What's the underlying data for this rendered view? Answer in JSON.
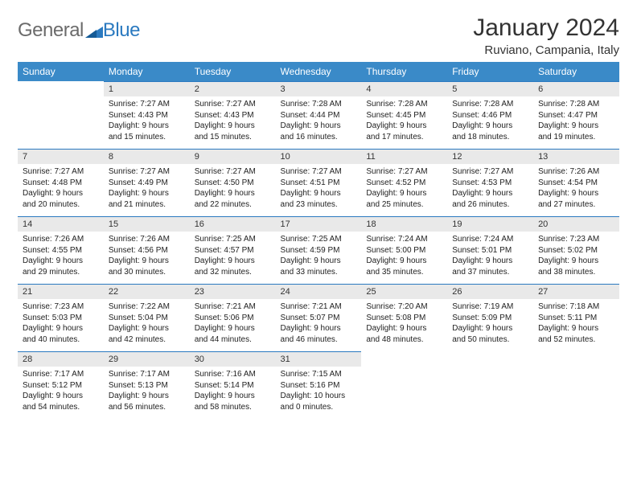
{
  "logo": {
    "part1": "General",
    "part2": "Blue"
  },
  "title": "January 2024",
  "location": "Ruviano, Campania, Italy",
  "headers": [
    "Sunday",
    "Monday",
    "Tuesday",
    "Wednesday",
    "Thursday",
    "Friday",
    "Saturday"
  ],
  "colors": {
    "header_bg": "#3a8ac0",
    "header_fg": "#ffffff",
    "border": "#2b7ac0",
    "daybar": "#e9e9e9",
    "text": "#222222",
    "logo_gray": "#6b6b6b",
    "logo_blue": "#2b7ac0"
  },
  "weeks": [
    [
      {
        "empty": true
      },
      {
        "num": "1",
        "sunrise": "Sunrise: 7:27 AM",
        "sunset": "Sunset: 4:43 PM",
        "day1": "Daylight: 9 hours",
        "day2": "and 15 minutes."
      },
      {
        "num": "2",
        "sunrise": "Sunrise: 7:27 AM",
        "sunset": "Sunset: 4:43 PM",
        "day1": "Daylight: 9 hours",
        "day2": "and 15 minutes."
      },
      {
        "num": "3",
        "sunrise": "Sunrise: 7:28 AM",
        "sunset": "Sunset: 4:44 PM",
        "day1": "Daylight: 9 hours",
        "day2": "and 16 minutes."
      },
      {
        "num": "4",
        "sunrise": "Sunrise: 7:28 AM",
        "sunset": "Sunset: 4:45 PM",
        "day1": "Daylight: 9 hours",
        "day2": "and 17 minutes."
      },
      {
        "num": "5",
        "sunrise": "Sunrise: 7:28 AM",
        "sunset": "Sunset: 4:46 PM",
        "day1": "Daylight: 9 hours",
        "day2": "and 18 minutes."
      },
      {
        "num": "6",
        "sunrise": "Sunrise: 7:28 AM",
        "sunset": "Sunset: 4:47 PM",
        "day1": "Daylight: 9 hours",
        "day2": "and 19 minutes."
      }
    ],
    [
      {
        "num": "7",
        "sunrise": "Sunrise: 7:27 AM",
        "sunset": "Sunset: 4:48 PM",
        "day1": "Daylight: 9 hours",
        "day2": "and 20 minutes."
      },
      {
        "num": "8",
        "sunrise": "Sunrise: 7:27 AM",
        "sunset": "Sunset: 4:49 PM",
        "day1": "Daylight: 9 hours",
        "day2": "and 21 minutes."
      },
      {
        "num": "9",
        "sunrise": "Sunrise: 7:27 AM",
        "sunset": "Sunset: 4:50 PM",
        "day1": "Daylight: 9 hours",
        "day2": "and 22 minutes."
      },
      {
        "num": "10",
        "sunrise": "Sunrise: 7:27 AM",
        "sunset": "Sunset: 4:51 PM",
        "day1": "Daylight: 9 hours",
        "day2": "and 23 minutes."
      },
      {
        "num": "11",
        "sunrise": "Sunrise: 7:27 AM",
        "sunset": "Sunset: 4:52 PM",
        "day1": "Daylight: 9 hours",
        "day2": "and 25 minutes."
      },
      {
        "num": "12",
        "sunrise": "Sunrise: 7:27 AM",
        "sunset": "Sunset: 4:53 PM",
        "day1": "Daylight: 9 hours",
        "day2": "and 26 minutes."
      },
      {
        "num": "13",
        "sunrise": "Sunrise: 7:26 AM",
        "sunset": "Sunset: 4:54 PM",
        "day1": "Daylight: 9 hours",
        "day2": "and 27 minutes."
      }
    ],
    [
      {
        "num": "14",
        "sunrise": "Sunrise: 7:26 AM",
        "sunset": "Sunset: 4:55 PM",
        "day1": "Daylight: 9 hours",
        "day2": "and 29 minutes."
      },
      {
        "num": "15",
        "sunrise": "Sunrise: 7:26 AM",
        "sunset": "Sunset: 4:56 PM",
        "day1": "Daylight: 9 hours",
        "day2": "and 30 minutes."
      },
      {
        "num": "16",
        "sunrise": "Sunrise: 7:25 AM",
        "sunset": "Sunset: 4:57 PM",
        "day1": "Daylight: 9 hours",
        "day2": "and 32 minutes."
      },
      {
        "num": "17",
        "sunrise": "Sunrise: 7:25 AM",
        "sunset": "Sunset: 4:59 PM",
        "day1": "Daylight: 9 hours",
        "day2": "and 33 minutes."
      },
      {
        "num": "18",
        "sunrise": "Sunrise: 7:24 AM",
        "sunset": "Sunset: 5:00 PM",
        "day1": "Daylight: 9 hours",
        "day2": "and 35 minutes."
      },
      {
        "num": "19",
        "sunrise": "Sunrise: 7:24 AM",
        "sunset": "Sunset: 5:01 PM",
        "day1": "Daylight: 9 hours",
        "day2": "and 37 minutes."
      },
      {
        "num": "20",
        "sunrise": "Sunrise: 7:23 AM",
        "sunset": "Sunset: 5:02 PM",
        "day1": "Daylight: 9 hours",
        "day2": "and 38 minutes."
      }
    ],
    [
      {
        "num": "21",
        "sunrise": "Sunrise: 7:23 AM",
        "sunset": "Sunset: 5:03 PM",
        "day1": "Daylight: 9 hours",
        "day2": "and 40 minutes."
      },
      {
        "num": "22",
        "sunrise": "Sunrise: 7:22 AM",
        "sunset": "Sunset: 5:04 PM",
        "day1": "Daylight: 9 hours",
        "day2": "and 42 minutes."
      },
      {
        "num": "23",
        "sunrise": "Sunrise: 7:21 AM",
        "sunset": "Sunset: 5:06 PM",
        "day1": "Daylight: 9 hours",
        "day2": "and 44 minutes."
      },
      {
        "num": "24",
        "sunrise": "Sunrise: 7:21 AM",
        "sunset": "Sunset: 5:07 PM",
        "day1": "Daylight: 9 hours",
        "day2": "and 46 minutes."
      },
      {
        "num": "25",
        "sunrise": "Sunrise: 7:20 AM",
        "sunset": "Sunset: 5:08 PM",
        "day1": "Daylight: 9 hours",
        "day2": "and 48 minutes."
      },
      {
        "num": "26",
        "sunrise": "Sunrise: 7:19 AM",
        "sunset": "Sunset: 5:09 PM",
        "day1": "Daylight: 9 hours",
        "day2": "and 50 minutes."
      },
      {
        "num": "27",
        "sunrise": "Sunrise: 7:18 AM",
        "sunset": "Sunset: 5:11 PM",
        "day1": "Daylight: 9 hours",
        "day2": "and 52 minutes."
      }
    ],
    [
      {
        "num": "28",
        "sunrise": "Sunrise: 7:17 AM",
        "sunset": "Sunset: 5:12 PM",
        "day1": "Daylight: 9 hours",
        "day2": "and 54 minutes."
      },
      {
        "num": "29",
        "sunrise": "Sunrise: 7:17 AM",
        "sunset": "Sunset: 5:13 PM",
        "day1": "Daylight: 9 hours",
        "day2": "and 56 minutes."
      },
      {
        "num": "30",
        "sunrise": "Sunrise: 7:16 AM",
        "sunset": "Sunset: 5:14 PM",
        "day1": "Daylight: 9 hours",
        "day2": "and 58 minutes."
      },
      {
        "num": "31",
        "sunrise": "Sunrise: 7:15 AM",
        "sunset": "Sunset: 5:16 PM",
        "day1": "Daylight: 10 hours",
        "day2": "and 0 minutes."
      },
      {
        "empty": true
      },
      {
        "empty": true
      },
      {
        "empty": true
      }
    ]
  ]
}
